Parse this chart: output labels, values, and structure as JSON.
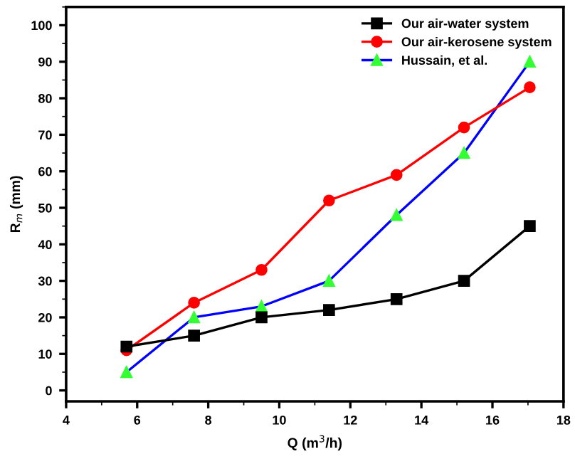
{
  "chart_data": {
    "type": "line",
    "xlabel": "Q (m$^{3}$/h)",
    "ylabel": "R$_{m}$ (mm)",
    "x": [
      5.7,
      7.6,
      9.5,
      11.4,
      13.3,
      15.2,
      17.05
    ],
    "series": [
      {
        "name": "Our air-water system",
        "color": "#000000",
        "marker": "square",
        "values": [
          12,
          15,
          20,
          22,
          25,
          30,
          45
        ]
      },
      {
        "name": "Our air-kerosene system",
        "color": "#ff0000",
        "marker": "circle",
        "values": [
          11,
          24,
          33,
          52,
          59,
          72,
          83
        ]
      },
      {
        "name": "Hussain, et al.",
        "color": "#0000ff",
        "marker": "triangle",
        "values": [
          5,
          20,
          23,
          30,
          48,
          65,
          90
        ]
      }
    ],
    "xlim": [
      4,
      18
    ],
    "xticks": [
      4,
      6,
      8,
      10,
      12,
      14,
      16,
      18
    ],
    "ylim": [
      -3,
      105
    ],
    "yticks": [
      0,
      10,
      20,
      30,
      40,
      50,
      60,
      70,
      80,
      90,
      100
    ],
    "grid": false,
    "legend": "top right",
    "line_style": "solid"
  }
}
